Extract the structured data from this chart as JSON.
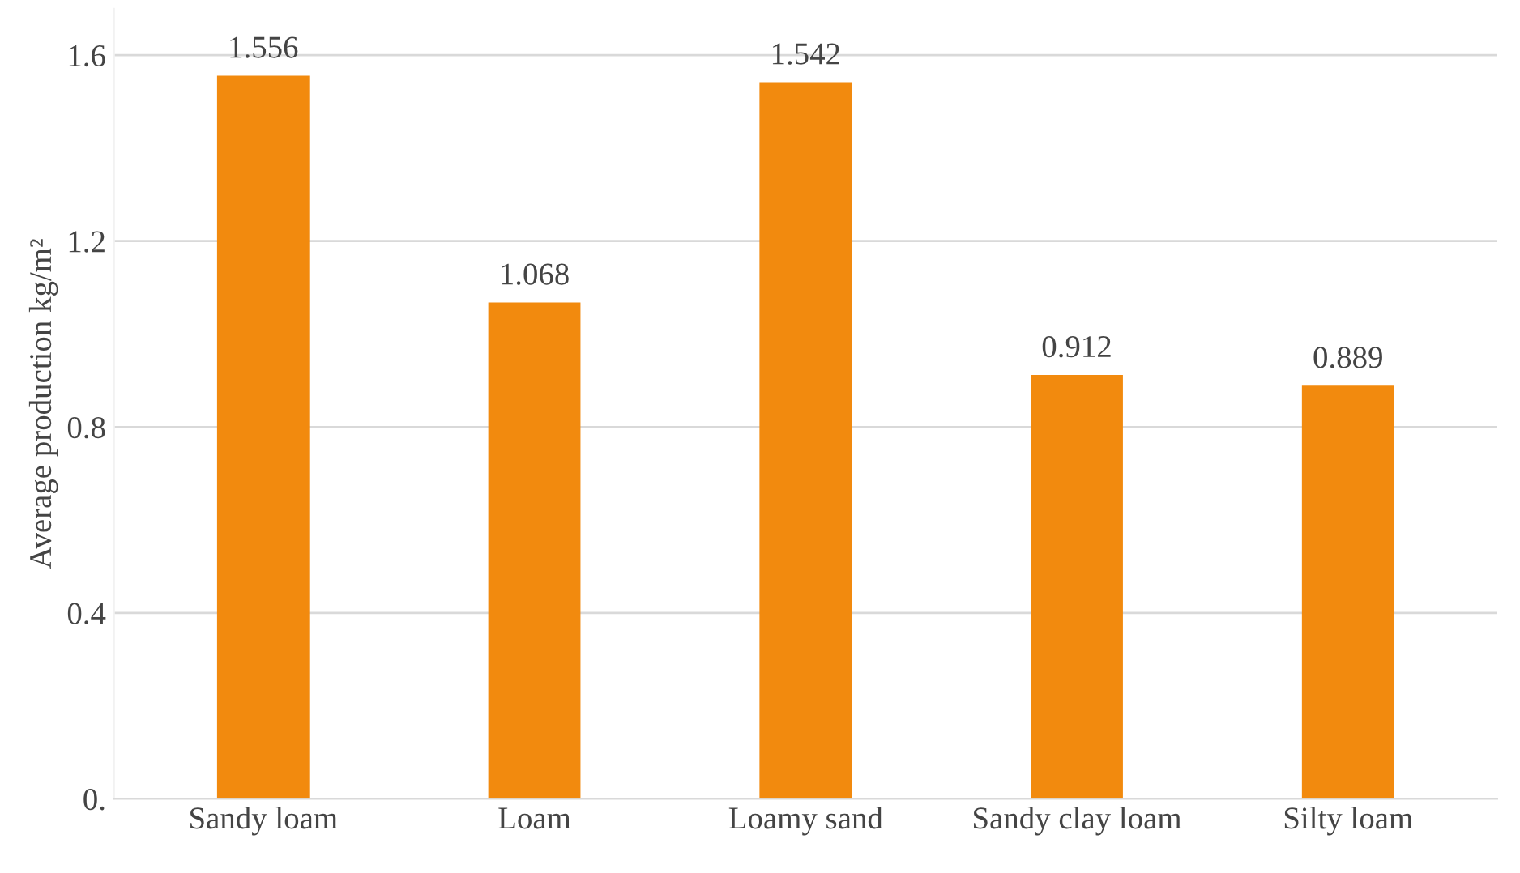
{
  "chart_data": {
    "type": "bar",
    "ylabel": "Average production kg/m²",
    "categories": [
      "Sandy loam",
      "Loam",
      "Loamy sand",
      "Sandy clay loam",
      "Silty loam"
    ],
    "values": [
      1.556,
      1.068,
      1.542,
      0.912,
      0.889
    ],
    "color": "#f28a0e",
    "ylim": [
      0,
      1.7
    ],
    "yticks": [
      {
        "value": 0,
        "label": "0."
      },
      0.4,
      0.8,
      1.2,
      1.6
    ],
    "grid": "y",
    "data_labels": true,
    "legend": false
  }
}
